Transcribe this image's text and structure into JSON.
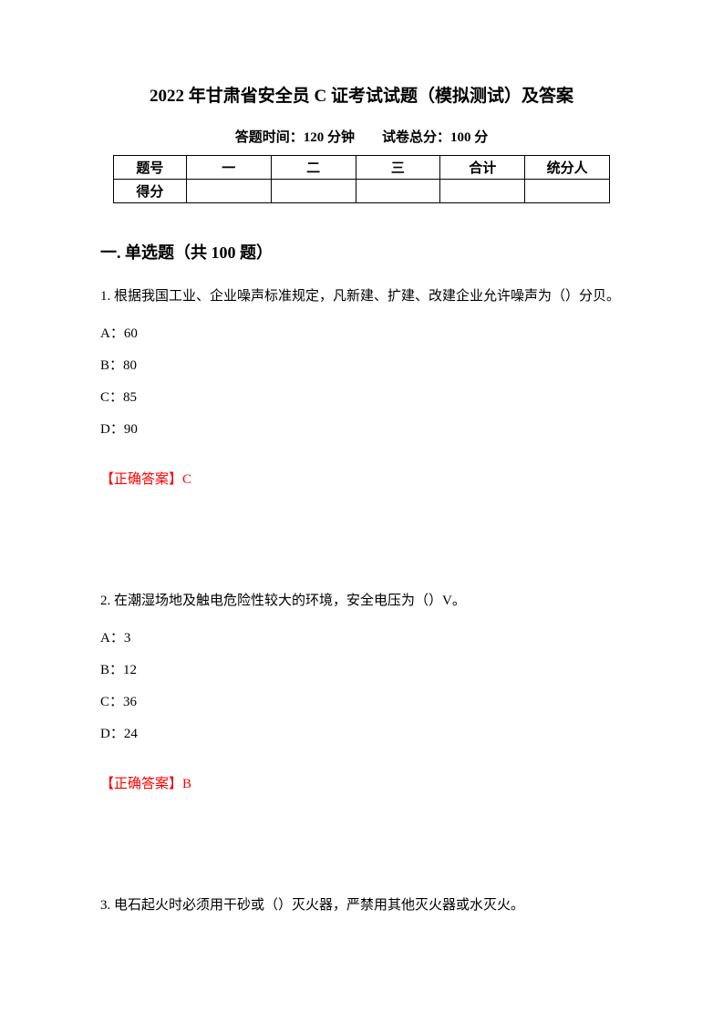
{
  "title": "2022 年甘肃省安全员 C 证考试试题（模拟测试）及答案",
  "exam_info": "答题时间：120 分钟　　试卷总分：100 分",
  "table": {
    "row1": {
      "label": "题号",
      "c1": "一",
      "c2": "二",
      "c3": "三",
      "c4": "合计",
      "c5": "统分人"
    },
    "row2": {
      "label": "得分",
      "c1": "",
      "c2": "",
      "c3": "",
      "c4": "",
      "c5": ""
    }
  },
  "section": "一. 单选题（共 100 题）",
  "q1": {
    "text": "1. 根据我国工业、企业噪声标准规定，凡新建、扩建、改建企业允许噪声为（）分贝。",
    "a": "A：60",
    "b": "B：80",
    "c": "C：85",
    "d": "D：90",
    "answer": "【正确答案】C"
  },
  "q2": {
    "text": "2. 在潮湿场地及触电危险性较大的环境，安全电压为（）V。",
    "a": "A：3",
    "b": "B：12",
    "c": "C：36",
    "d": "D：24",
    "answer": "【正确答案】B"
  },
  "q3": {
    "text": "3. 电石起火时必须用干砂或（）灭火器，严禁用其他灭火器或水灭火。"
  }
}
